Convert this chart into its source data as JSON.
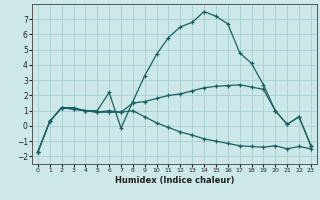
{
  "xlabel": "Humidex (Indice chaleur)",
  "background_color": "#cce8e8",
  "grid_color": "#aacfcf",
  "line_color": "#1a6060",
  "xlim": [
    -0.5,
    23.5
  ],
  "ylim": [
    -2.5,
    8.0
  ],
  "xticks": [
    0,
    1,
    2,
    3,
    4,
    5,
    6,
    7,
    8,
    9,
    10,
    11,
    12,
    13,
    14,
    15,
    16,
    17,
    18,
    19,
    20,
    21,
    22,
    23
  ],
  "yticks": [
    -2,
    -1,
    0,
    1,
    2,
    3,
    4,
    5,
    6,
    7
  ],
  "series1_x": [
    0,
    1,
    2,
    3,
    4,
    5,
    6,
    7,
    8,
    9,
    10,
    11,
    12,
    13,
    14,
    15,
    16,
    17,
    18,
    19,
    20,
    21,
    22,
    23
  ],
  "series1_y": [
    -1.7,
    0.3,
    1.2,
    1.2,
    1.0,
    1.0,
    2.2,
    -0.15,
    1.6,
    3.3,
    4.7,
    5.8,
    6.5,
    6.8,
    7.5,
    7.2,
    6.7,
    4.8,
    4.1,
    2.7,
    1.0,
    0.1,
    0.6,
    -1.3
  ],
  "series2_x": [
    0,
    1,
    2,
    3,
    4,
    5,
    6,
    7,
    8,
    9,
    10,
    11,
    12,
    13,
    14,
    15,
    16,
    17,
    18,
    19,
    20,
    21,
    22,
    23
  ],
  "series2_y": [
    -1.7,
    0.3,
    1.2,
    1.1,
    1.0,
    0.9,
    1.0,
    0.9,
    1.5,
    1.6,
    1.8,
    2.0,
    2.1,
    2.3,
    2.5,
    2.6,
    2.65,
    2.7,
    2.55,
    2.4,
    1.0,
    0.1,
    0.6,
    -1.3
  ],
  "series3_x": [
    0,
    1,
    2,
    3,
    4,
    5,
    6,
    7,
    8,
    9,
    10,
    11,
    12,
    13,
    14,
    15,
    16,
    17,
    18,
    19,
    20,
    21,
    22,
    23
  ],
  "series3_y": [
    -1.7,
    0.3,
    1.2,
    1.1,
    1.0,
    0.9,
    0.9,
    0.9,
    1.0,
    0.6,
    0.2,
    -0.1,
    -0.4,
    -0.6,
    -0.85,
    -1.0,
    -1.15,
    -1.3,
    -1.35,
    -1.4,
    -1.3,
    -1.5,
    -1.35,
    -1.5
  ]
}
